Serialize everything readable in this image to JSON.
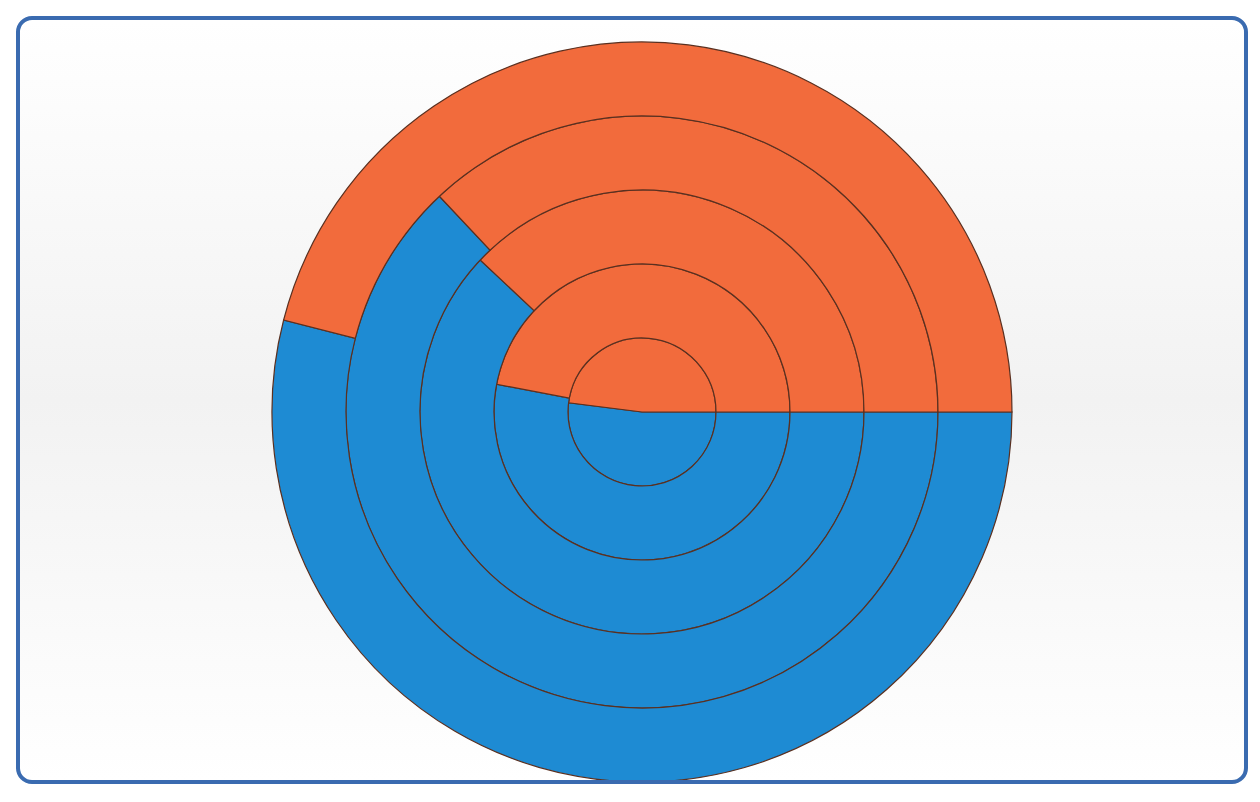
{
  "chart_data": {
    "type": "pie",
    "categories": [
      null,
      null
    ],
    "colors": [
      "#1e8bd3",
      "#f26b3c"
    ],
    "series": [
      {
        "values": [
          52,
          48
        ]
      },
      {
        "values": [
          53,
          47
        ]
      },
      {
        "values": [
          62,
          38
        ]
      },
      {
        "values": [
          63,
          37
        ]
      },
      {
        "values": [
          54,
          46
        ]
      }
    ]
  }
}
